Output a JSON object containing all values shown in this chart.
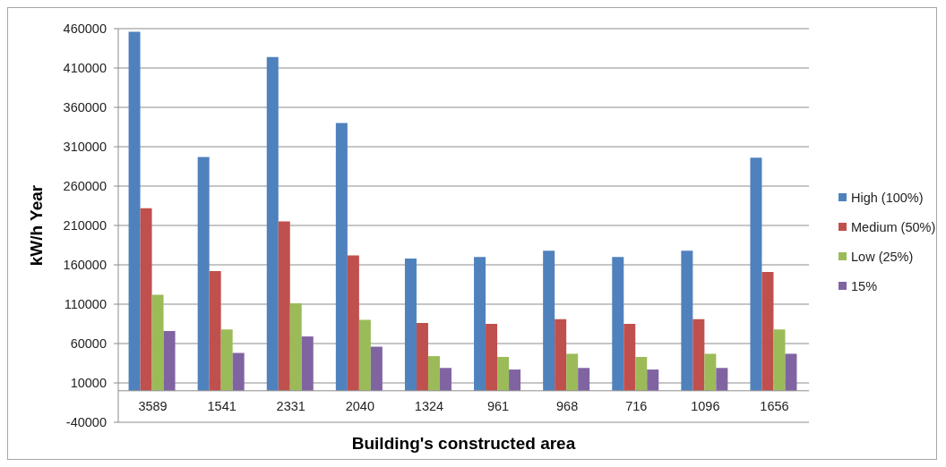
{
  "chart_data": {
    "type": "bar",
    "xlabel": "Building's constructed area",
    "ylabel": "kW/h Year",
    "categories": [
      "3589",
      "1541",
      "2331",
      "2040",
      "1324",
      "961",
      "968",
      "716",
      "1096",
      "1656"
    ],
    "series": [
      {
        "name": "High (100%)",
        "color": "#4f81bd",
        "values": [
          456000,
          297000,
          424000,
          340000,
          168000,
          170000,
          178000,
          170000,
          178000,
          296000
        ]
      },
      {
        "name": "Medium (50%)",
        "color": "#c0504d",
        "values": [
          232000,
          152000,
          215000,
          172000,
          86000,
          85000,
          91000,
          85000,
          91000,
          151000
        ]
      },
      {
        "name": "Low (25%)",
        "color": "#9bbb59",
        "values": [
          122000,
          78000,
          111000,
          90000,
          44000,
          43000,
          47000,
          43000,
          47000,
          78000
        ]
      },
      {
        "name": "15%",
        "color": "#8064a2",
        "values": [
          76000,
          48000,
          69000,
          56000,
          29000,
          27000,
          29000,
          27000,
          29000,
          47000
        ]
      }
    ],
    "ylim": [
      -40000,
      460000
    ],
    "yticks": [
      -40000,
      10000,
      60000,
      110000,
      160000,
      210000,
      260000,
      310000,
      360000,
      410000,
      460000
    ],
    "grid": "y",
    "legend": "right"
  }
}
